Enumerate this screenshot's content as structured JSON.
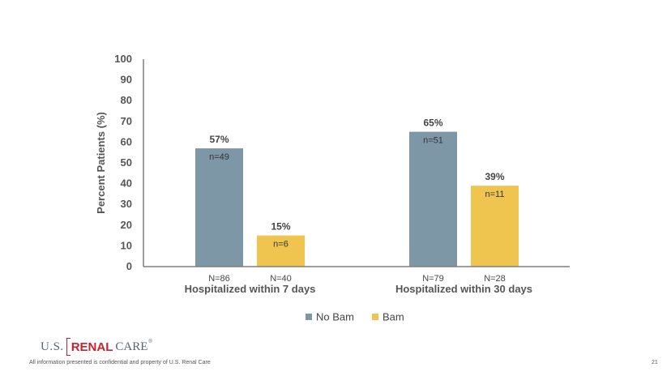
{
  "chart_data": {
    "type": "bar",
    "title": "",
    "ylabel": "Percent Patients (%)",
    "ylim": [
      0,
      100
    ],
    "yticks": [
      0,
      10,
      20,
      30,
      40,
      50,
      60,
      70,
      80,
      90,
      100
    ],
    "grid": false,
    "legend_position": "bottom",
    "categories": [
      "Hospitalized within 7 days",
      "Hospitalized within 30 days"
    ],
    "series": [
      {
        "name": "No Bam",
        "color": "#7e97a6",
        "values": [
          57,
          65
        ],
        "value_labels": [
          "57%",
          "65%"
        ],
        "inner_labels": [
          "n=49",
          "n=51"
        ],
        "n_labels": [
          "N=86",
          "N=79"
        ]
      },
      {
        "name": "Bam",
        "color": "#efc44f",
        "values": [
          15,
          39
        ],
        "value_labels": [
          "15%",
          "39%"
        ],
        "inner_labels": [
          "n=6",
          "n=11"
        ],
        "n_labels": [
          "N=40",
          "N=28"
        ]
      }
    ]
  },
  "logo": {
    "us": "U.S.",
    "renal": "RENAL",
    "care": "CARE",
    "tm": "®"
  },
  "footer": {
    "note": "All information presented is confidential and property of U.S. Renal Care",
    "page_number": "21"
  }
}
